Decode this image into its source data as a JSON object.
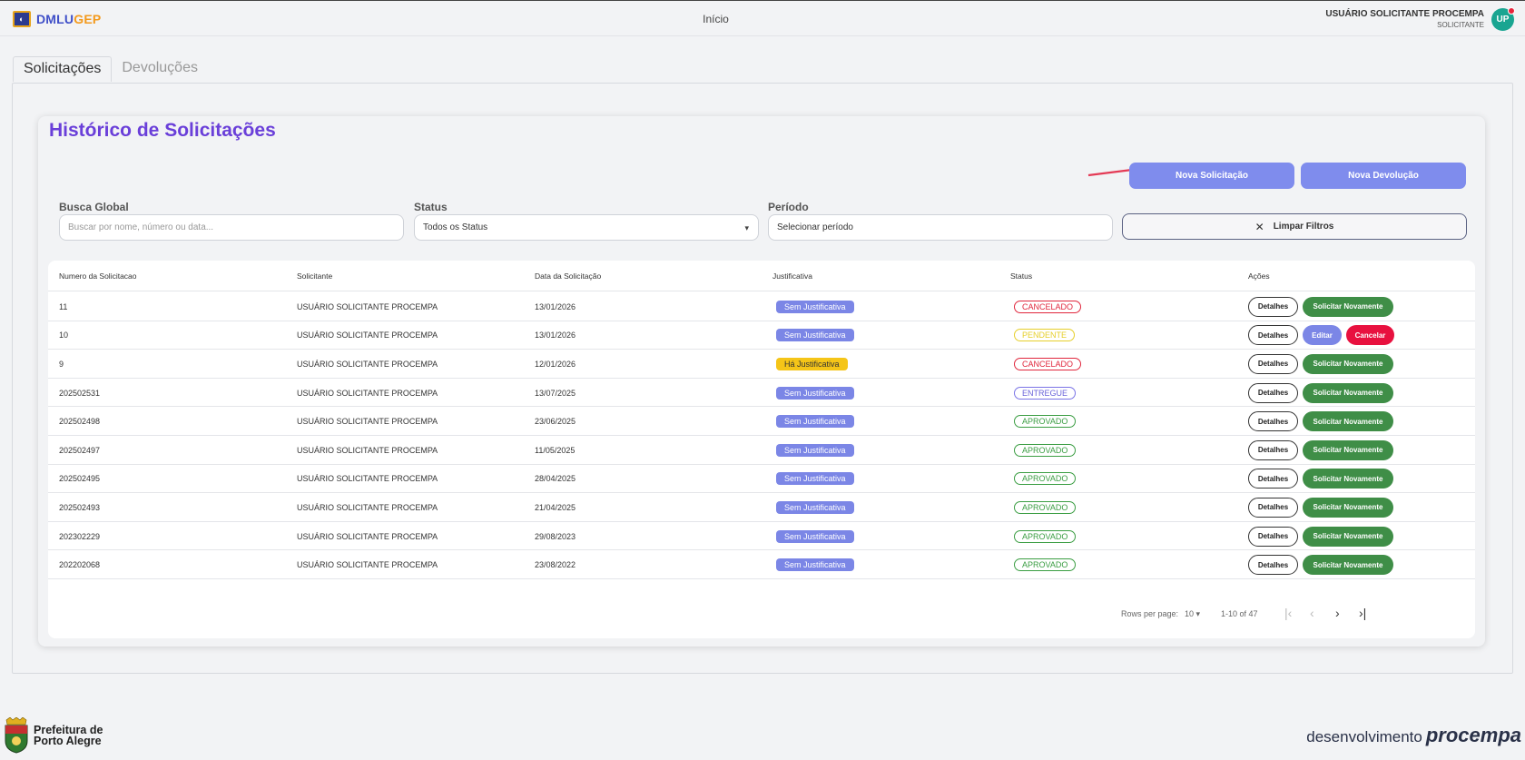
{
  "header": {
    "brand_part1": "DMLU",
    "brand_part2": "GEP",
    "nav_title": "Início",
    "user_name": "USUÁRIO SOLICITANTE PROCEMPA",
    "user_role": "SOLICITANTE",
    "avatar_initials": "UP"
  },
  "tabs": [
    {
      "label": "Solicitações",
      "active": true
    },
    {
      "label": "Devoluções",
      "active": false
    }
  ],
  "page": {
    "title": "Histórico de Solicitações",
    "new_request_label": "Nova Solicitação",
    "new_return_label": "Nova Devolução"
  },
  "filters": {
    "search_label": "Busca Global",
    "search_placeholder": "Buscar por nome, número ou data...",
    "status_label": "Status",
    "status_value": "Todos os Status",
    "period_label": "Período",
    "period_placeholder": "Selecionar período",
    "clear_label": "Limpar Filtros"
  },
  "table": {
    "headers": [
      "Numero da Solicitacao",
      "Solicitante",
      "Data da Solicitação",
      "Justificativa",
      "Status",
      "Ações"
    ],
    "rows": [
      {
        "numero": "11",
        "solicitante": "USUÁRIO SOLICITANTE PROCEMPA",
        "data": "13/01/2026",
        "justificativa": "Sem Justificativa",
        "status": "CANCELADO",
        "acoes": [
          "Detalhes",
          "Solicitar Novamente"
        ]
      },
      {
        "numero": "10",
        "solicitante": "USUÁRIO SOLICITANTE PROCEMPA",
        "data": "13/01/2026",
        "justificativa": "Sem Justificativa",
        "status": "PENDENTE",
        "acoes": [
          "Detalhes",
          "Editar",
          "Cancelar"
        ]
      },
      {
        "numero": "9",
        "solicitante": "USUÁRIO SOLICITANTE PROCEMPA",
        "data": "12/01/2026",
        "justificativa": "Há Justificativa",
        "status": "CANCELADO",
        "acoes": [
          "Detalhes",
          "Solicitar Novamente"
        ]
      },
      {
        "numero": "202502531",
        "solicitante": "USUÁRIO SOLICITANTE PROCEMPA",
        "data": "13/07/2025",
        "justificativa": "Sem Justificativa",
        "status": "ENTREGUE",
        "acoes": [
          "Detalhes",
          "Solicitar Novamente"
        ]
      },
      {
        "numero": "202502498",
        "solicitante": "USUÁRIO SOLICITANTE PROCEMPA",
        "data": "23/06/2025",
        "justificativa": "Sem Justificativa",
        "status": "APROVADO",
        "acoes": [
          "Detalhes",
          "Solicitar Novamente"
        ]
      },
      {
        "numero": "202502497",
        "solicitante": "USUÁRIO SOLICITANTE PROCEMPA",
        "data": "11/05/2025",
        "justificativa": "Sem Justificativa",
        "status": "APROVADO",
        "acoes": [
          "Detalhes",
          "Solicitar Novamente"
        ]
      },
      {
        "numero": "202502495",
        "solicitante": "USUÁRIO SOLICITANTE PROCEMPA",
        "data": "28/04/2025",
        "justificativa": "Sem Justificativa",
        "status": "APROVADO",
        "acoes": [
          "Detalhes",
          "Solicitar Novamente"
        ]
      },
      {
        "numero": "202502493",
        "solicitante": "USUÁRIO SOLICITANTE PROCEMPA",
        "data": "21/04/2025",
        "justificativa": "Sem Justificativa",
        "status": "APROVADO",
        "acoes": [
          "Detalhes",
          "Solicitar Novamente"
        ]
      },
      {
        "numero": "202302229",
        "solicitante": "USUÁRIO SOLICITANTE PROCEMPA",
        "data": "29/08/2023",
        "justificativa": "Sem Justificativa",
        "status": "APROVADO",
        "acoes": [
          "Detalhes",
          "Solicitar Novamente"
        ]
      },
      {
        "numero": "202202068",
        "solicitante": "USUÁRIO SOLICITANTE PROCEMPA",
        "data": "23/08/2022",
        "justificativa": "Sem Justificativa",
        "status": "APROVADO",
        "acoes": [
          "Detalhes",
          "Solicitar Novamente"
        ]
      }
    ]
  },
  "pagination": {
    "rows_per_page_label": "Rows per page:",
    "rows_per_page_value": "10",
    "range_text": "1-10 of 47"
  },
  "footer": {
    "left_line1": "Prefeitura de",
    "left_line2": "Porto Alegre",
    "right_text1": "desenvolvimento",
    "right_text2": "procempa"
  },
  "colors": {
    "accent": "#7f8ced",
    "title": "#6a3fd9",
    "success": "#3f8e47",
    "danger": "#e8113f"
  }
}
